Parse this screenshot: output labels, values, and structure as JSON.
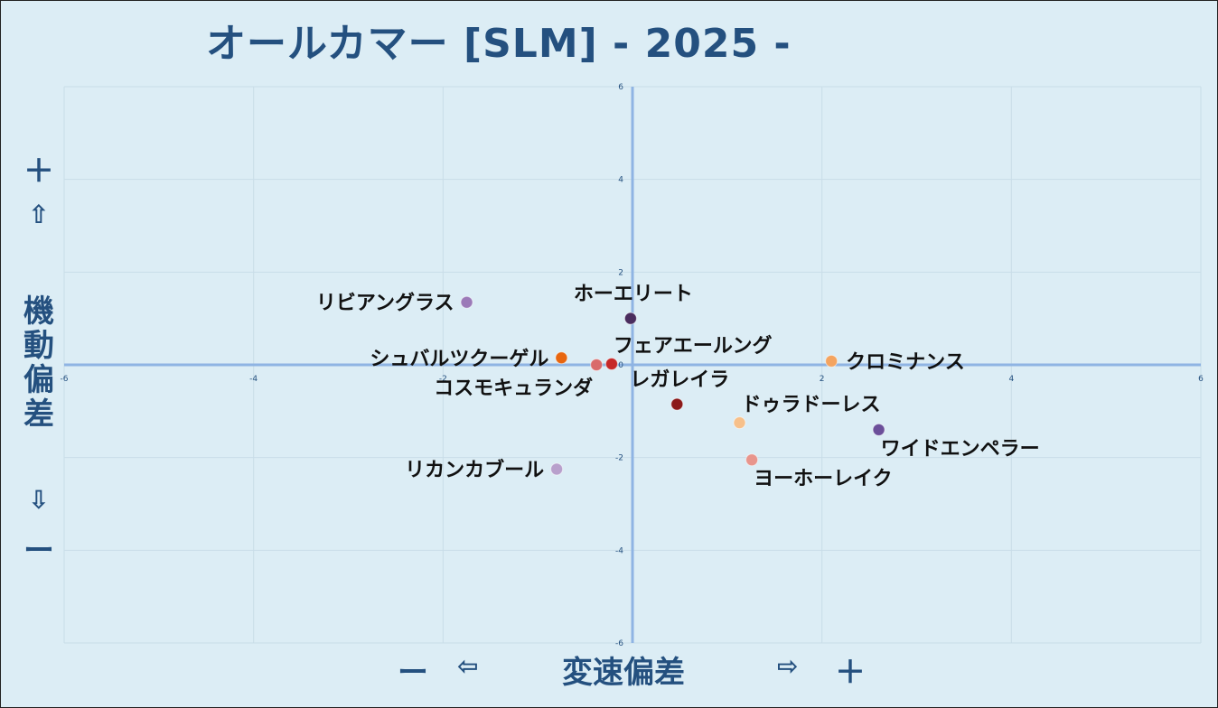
{
  "title": "オールカマー [SLM]  - 2025 -",
  "y_side": {
    "plus": "＋",
    "up_arrow": "⇧",
    "title": "機動偏差",
    "down_arrow": "⇩",
    "minus": "ー"
  },
  "x_side": {
    "minus": "ー",
    "left_arrow": "⇦",
    "title": "変速偏差",
    "right_arrow": "⇨",
    "plus": "＋"
  },
  "chart_data": {
    "type": "scatter",
    "title": "オールカマー [SLM]  - 2025 -",
    "xlabel": "変速偏差",
    "ylabel": "機動偏差",
    "xlim": [
      -6,
      6
    ],
    "ylim": [
      -6,
      6
    ],
    "x_ticks": [
      -6,
      -4,
      -2,
      2,
      4,
      6
    ],
    "y_ticks": [
      6,
      4,
      2,
      0,
      -2,
      -4,
      -6
    ],
    "grid": true,
    "axis_color": "#8fb4e3",
    "points": [
      {
        "name": "リビアングラス",
        "x": -1.75,
        "y": 1.35,
        "color": "#9b7ab8",
        "label_side": "left"
      },
      {
        "name": "ホーエリート",
        "x": -0.02,
        "y": 1.0,
        "color": "#4a2d5e",
        "label_side": "above"
      },
      {
        "name": "シュバルツクーゲル",
        "x": -0.75,
        "y": 0.15,
        "color": "#e8660f",
        "label_side": "left"
      },
      {
        "name": "コスモキュランダ",
        "x": -0.38,
        "y": 0.0,
        "color": "#d96b6b",
        "label_side": "below-left"
      },
      {
        "name": "フェアエールング",
        "x": -0.22,
        "y": 0.02,
        "color": "#c62828",
        "label_side": "above-right"
      },
      {
        "name": "クロミナンス",
        "x": 2.1,
        "y": 0.08,
        "color": "#f4a460",
        "label_side": "right"
      },
      {
        "name": "レガレイラ",
        "x": 0.47,
        "y": -0.85,
        "color": "#8b1a1a",
        "label_side": "above"
      },
      {
        "name": "ドゥラドーレス",
        "x": 1.13,
        "y": -1.25,
        "color": "#f7c08a",
        "label_side": "above-right"
      },
      {
        "name": "ワイドエンペラー",
        "x": 2.6,
        "y": -1.4,
        "color": "#6b4f9a",
        "label_side": "below-right"
      },
      {
        "name": "ヨーホーレイク",
        "x": 1.26,
        "y": -2.05,
        "color": "#e8958c",
        "label_side": "below-right"
      },
      {
        "name": "リカンカブール",
        "x": -0.8,
        "y": -2.25,
        "color": "#b8a0cc",
        "label_side": "left"
      }
    ]
  }
}
